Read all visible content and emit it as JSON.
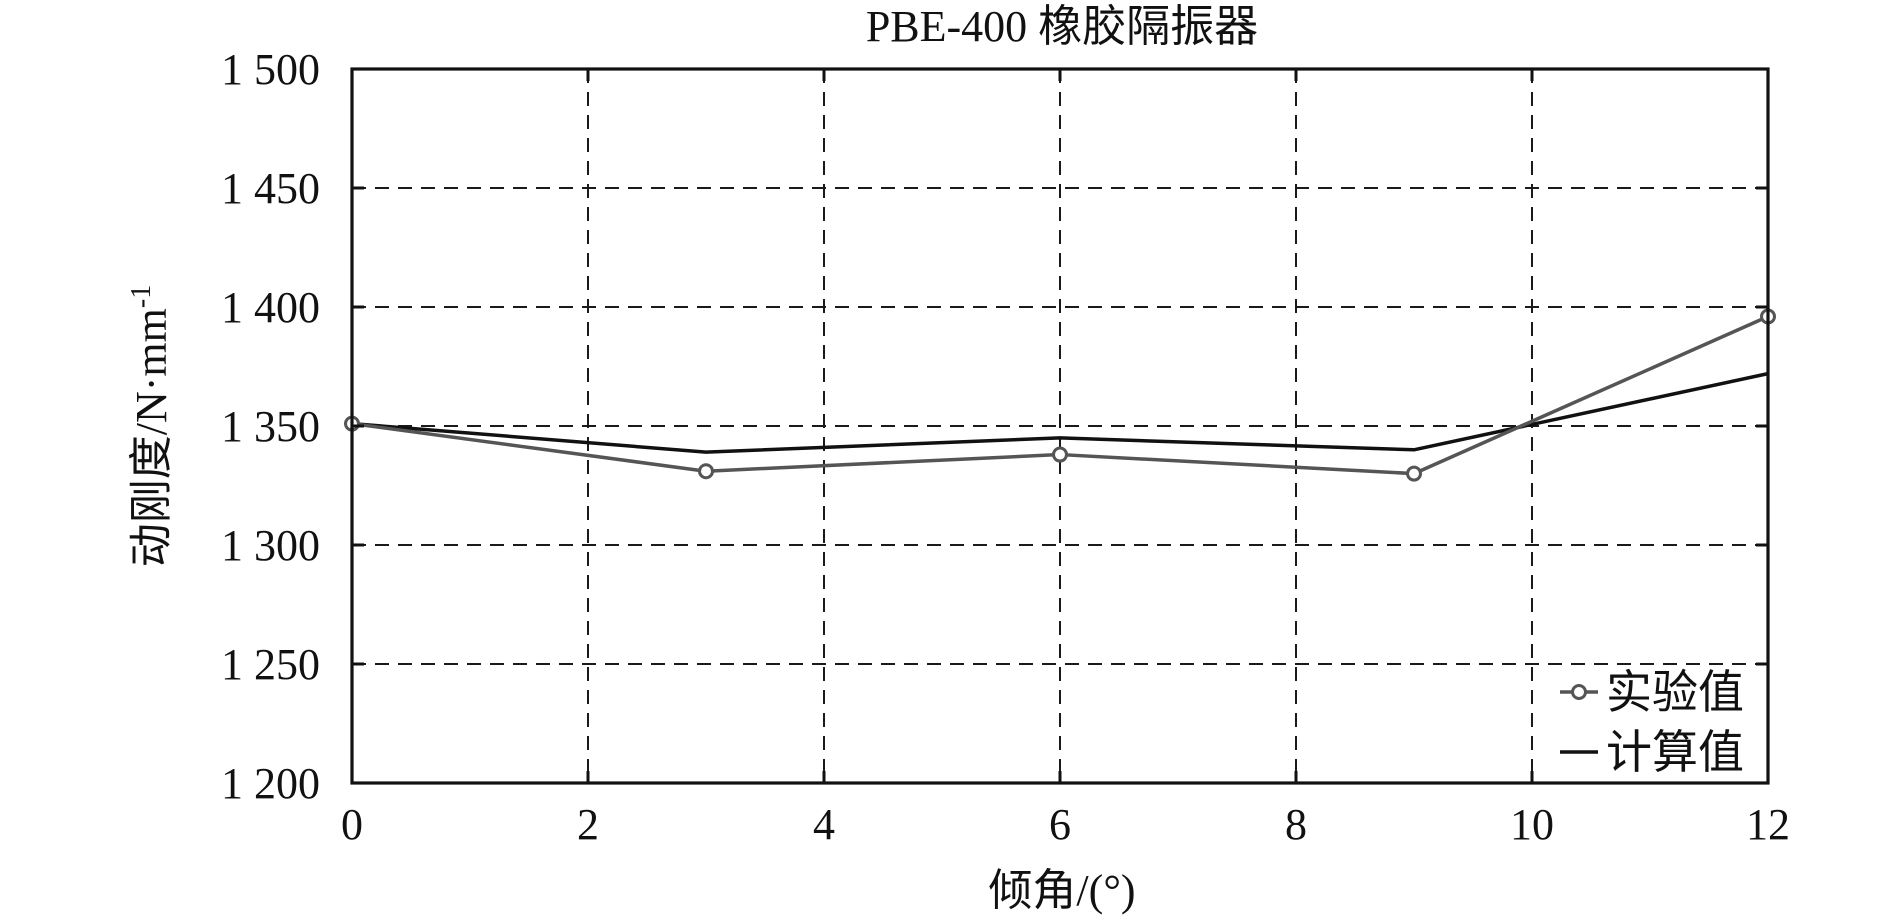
{
  "chart_data": {
    "type": "line",
    "title": "PBE-400 橡胶隔振器",
    "xlabel": "倾角/(°)",
    "ylabel": "动刚度/N·mm",
    "ylabel_sup": "-1",
    "xlim": [
      0,
      12
    ],
    "ylim": [
      1200,
      1500
    ],
    "x_ticks": [
      0,
      2,
      4,
      6,
      8,
      10,
      12
    ],
    "x_tick_labels": [
      "0",
      "2",
      "4",
      "6",
      "8",
      "10",
      "12"
    ],
    "y_ticks": [
      1200,
      1250,
      1300,
      1350,
      1400,
      1450,
      1500
    ],
    "y_tick_labels": [
      "1 200",
      "1 250",
      "1 300",
      "1 350",
      "1 400",
      "1 450",
      "1 500"
    ],
    "grid": true,
    "legend_position": "bottom-right",
    "series": [
      {
        "name": "实验值",
        "color": "#555555",
        "marker": "circle",
        "x": [
          0,
          3,
          6,
          9,
          12
        ],
        "y": [
          1351,
          1331,
          1338,
          1330,
          1396
        ]
      },
      {
        "name": "计算值",
        "color": "#111111",
        "marker": "none",
        "x": [
          0,
          3,
          6,
          9,
          12
        ],
        "y": [
          1351,
          1339,
          1345,
          1340,
          1372
        ]
      }
    ]
  }
}
